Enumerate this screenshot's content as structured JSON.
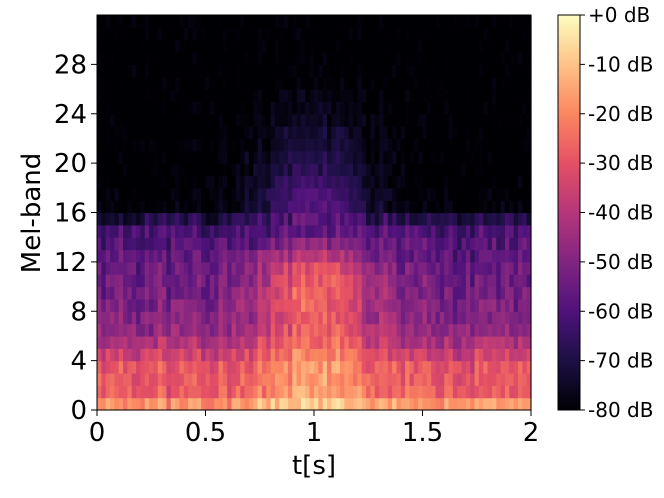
{
  "chart_data": {
    "type": "heatmap",
    "title": "",
    "xlabel": "t[s]",
    "ylabel": "Mel-band",
    "xlim": [
      0,
      2
    ],
    "ylim": [
      0,
      32
    ],
    "x_ticks": [
      0,
      0.5,
      1,
      1.5,
      2
    ],
    "x_tick_labels": [
      "0",
      "0.5",
      "1",
      "1.5",
      "2"
    ],
    "y_ticks": [
      0,
      4,
      8,
      12,
      16,
      20,
      24,
      28
    ],
    "y_tick_labels": [
      "0",
      "4",
      "8",
      "12",
      "16",
      "20",
      "24",
      "28"
    ],
    "colormap": "magma",
    "value_range_db": [
      -80,
      0
    ],
    "colorbar_ticks": [
      0,
      -10,
      -20,
      -30,
      -40,
      -50,
      -60,
      -70,
      -80
    ],
    "colorbar_labels": [
      "+0 dB",
      "-10 dB",
      "-20 dB",
      "-30 dB",
      "-40 dB",
      "-50 dB",
      "-60 dB",
      "-70 dB",
      "-80 dB"
    ],
    "grid": false,
    "n_time_frames": 100,
    "n_mel_bands": 32,
    "band_levels_db": {
      "bands": [
        0,
        1,
        2,
        3,
        4,
        5,
        6,
        7,
        8,
        9,
        10,
        11,
        12,
        13,
        14,
        15,
        16,
        18,
        20,
        22,
        24,
        26,
        28,
        31
      ],
      "edge_db": [
        -10,
        -26,
        -30,
        -28,
        -32,
        -40,
        -44,
        -50,
        -50,
        -52,
        -54,
        -54,
        -56,
        -58,
        -60,
        -62,
        -78,
        -79,
        -80,
        -80,
        -80,
        -80,
        -80,
        -80
      ],
      "center_db": [
        -3,
        -16,
        -18,
        -16,
        -18,
        -22,
        -26,
        -30,
        -28,
        -26,
        -26,
        -28,
        -34,
        -44,
        -56,
        -60,
        -56,
        -60,
        -66,
        -70,
        -74,
        -78,
        -80,
        -80
      ]
    },
    "center_time_s": 1.0,
    "center_width_s": 0.28
  }
}
